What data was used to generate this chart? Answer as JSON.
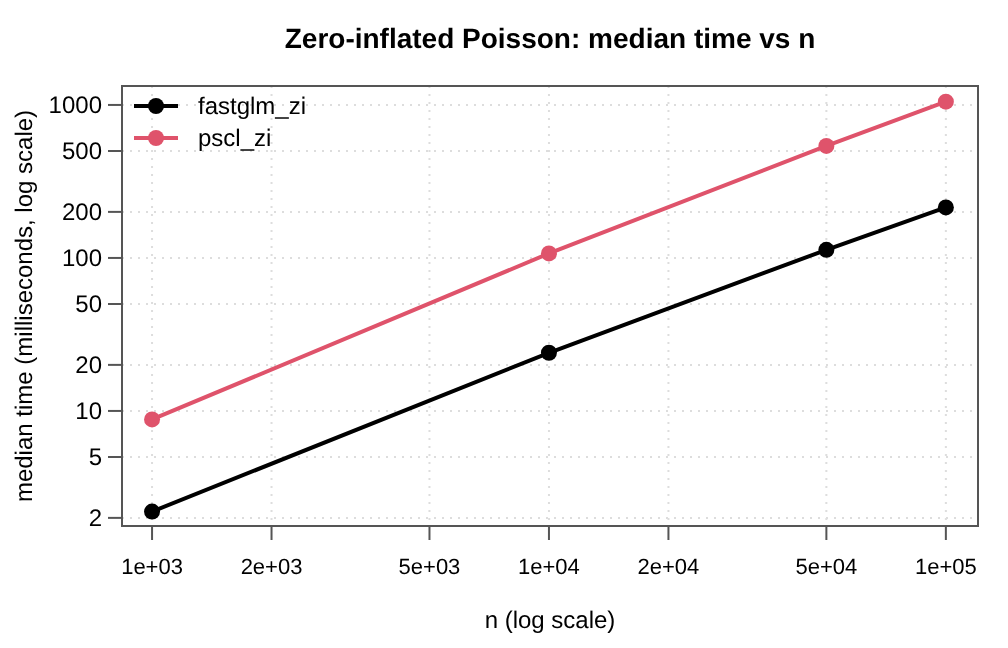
{
  "chart_data": {
    "type": "line",
    "title": "Zero-inflated Poisson: median time vs n",
    "xlabel": "n (log scale)",
    "ylabel": "median time (milliseconds, log scale)",
    "x": [
      1000,
      10000,
      50000,
      100000
    ],
    "series": [
      {
        "name": "fastglm_zi",
        "color": "#000000",
        "values": [
          2.2,
          24,
          113,
          214
        ]
      },
      {
        "name": "pscl_zi",
        "color": "#df536b",
        "values": [
          8.8,
          107,
          540,
          1050
        ]
      }
    ],
    "log": "xy",
    "xlim": [
      840,
      120500
    ],
    "ylim": [
      1.77,
      1330
    ],
    "xticks": [
      {
        "value": 1000,
        "label": "1e+03"
      },
      {
        "value": 2000,
        "label": "2e+03"
      },
      {
        "value": 5000,
        "label": "5e+03"
      },
      {
        "value": 10000,
        "label": "1e+04"
      },
      {
        "value": 20000,
        "label": "2e+04"
      },
      {
        "value": 50000,
        "label": "5e+04"
      },
      {
        "value": 100000,
        "label": "1e+05"
      }
    ],
    "yticks": [
      2,
      5,
      10,
      20,
      50,
      100,
      200,
      500,
      1000
    ],
    "grid": true,
    "legend": "top left",
    "marker": "circle",
    "line_style": "solid"
  }
}
